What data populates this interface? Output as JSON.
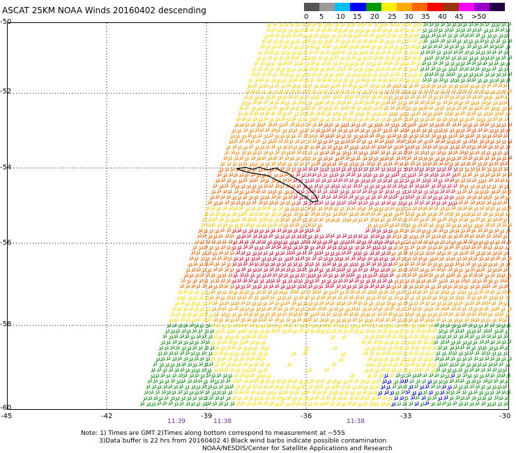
{
  "title": "ASCAT 25KM NOAA Winds 20160402 descending",
  "legend": {
    "labels": [
      "0",
      "5",
      "10",
      "15",
      "20",
      "25",
      "30",
      "35",
      "40",
      "45",
      ">50 knots"
    ],
    "colors": [
      "#555555",
      "#9a9a9a",
      "#00bfff",
      "#0000ff",
      "#009900",
      "#ffee00",
      "#ffaa00",
      "#ff6600",
      "#ff0000",
      "#993311",
      "#ff00ff",
      "#9900cc",
      "#220044"
    ]
  },
  "lat_labels": [
    "-50",
    "-52",
    "-54",
    "-56",
    "-58",
    "-60"
  ],
  "lon_labels": [
    "-45",
    "-42",
    "-39",
    "-36",
    "-33",
    "-30"
  ],
  "times": [
    "11:39",
    "11:38",
    "11:38"
  ],
  "notes": [
    "Note: 1) Times are GMT 2)Times along bottom correspond to measurement at ~55S",
    "3)Data buffer is 22 hrs from 20160402 4) Black wind barbs indicate possible contamination",
    "NOAA/NESDIS/Center for Satellite Applications and Research"
  ]
}
